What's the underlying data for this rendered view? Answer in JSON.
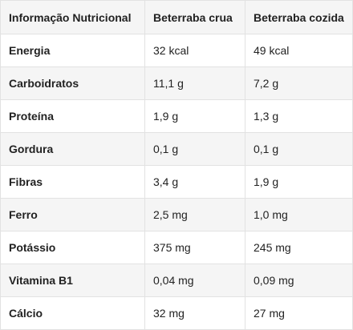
{
  "table": {
    "headers": [
      "Informação Nutricional",
      "Beterraba crua",
      "Beterraba cozida"
    ],
    "rows": [
      [
        "Energia",
        "32 kcal",
        "49 kcal"
      ],
      [
        "Carboidratos",
        "11,1 g",
        "7,2 g"
      ],
      [
        "Proteína",
        "1,9 g",
        "1,3 g"
      ],
      [
        "Gordura",
        "0,1 g",
        "0,1 g"
      ],
      [
        "Fibras",
        "3,4 g",
        "1,9 g"
      ],
      [
        "Ferro",
        "2,5 mg",
        "1,0 mg"
      ],
      [
        "Potássio",
        "375 mg",
        "245 mg"
      ],
      [
        "Vitamina B1",
        "0,04 mg",
        "0,09 mg"
      ],
      [
        "Cálcio",
        "32 mg",
        "27 mg"
      ]
    ]
  },
  "colors": {
    "stripe": "#f5f5f5",
    "border": "#e2e2e2",
    "text": "#222222"
  }
}
